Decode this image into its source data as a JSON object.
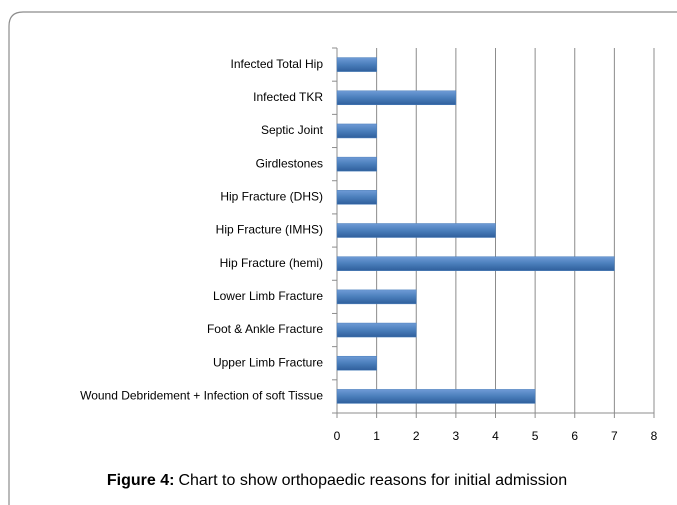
{
  "chart_data": {
    "type": "barh",
    "categories": [
      "Infected Total Hip",
      "Infected TKR",
      "Septic Joint",
      "Girdlestones",
      "Hip Fracture (DHS)",
      "Hip Fracture (IMHS)",
      "Hip Fracture (hemi)",
      "Lower Limb Fracture",
      "Foot & Ankle Fracture",
      "Upper Limb Fracture",
      "Wound Debridement + Infection of soft Tissue"
    ],
    "values": [
      1,
      3,
      1,
      1,
      1,
      4,
      7,
      2,
      2,
      1,
      5
    ],
    "color": "#4a7ebb",
    "xlim": [
      0,
      8
    ],
    "xticks": [
      0,
      1,
      2,
      3,
      4,
      5,
      6,
      7,
      8
    ],
    "grid": true,
    "caption_label": "Figure 4:",
    "caption_text": "Chart to show orthopaedic reasons for initial admission"
  }
}
